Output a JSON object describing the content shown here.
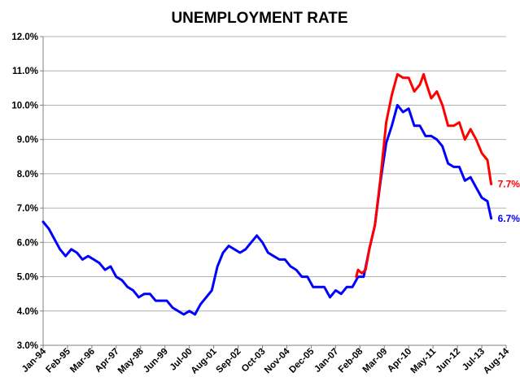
{
  "chart_data": {
    "type": "line",
    "title": "UNEMPLOYMENT RATE",
    "xlabel": "",
    "ylabel": "",
    "ylim": [
      3.0,
      12.0
    ],
    "y_ticks": [
      "3.0%",
      "4.0%",
      "5.0%",
      "6.0%",
      "7.0%",
      "8.0%",
      "9.0%",
      "10.0%",
      "11.0%",
      "12.0%"
    ],
    "x_ticks": [
      "Jan-94",
      "Feb-95",
      "Mar-96",
      "Apr-97",
      "May-98",
      "Jun-99",
      "Jul-00",
      "Aug-01",
      "Sep-02",
      "Oct-03",
      "Nov-04",
      "Dec-05",
      "Jan-07",
      "Feb-08",
      "Mar-09",
      "Apr-10",
      "May-11",
      "Jun-12",
      "Jul-13",
      "Aug-14"
    ],
    "grid": "horizontal",
    "legend": "none",
    "series": [
      {
        "color": "#0000ff",
        "end_label": "6.7%",
        "points": [
          [
            "Jan-94",
            6.6
          ],
          [
            "Apr-94",
            6.4
          ],
          [
            "Jul-94",
            6.1
          ],
          [
            "Oct-94",
            5.8
          ],
          [
            "Jan-95",
            5.6
          ],
          [
            "Apr-95",
            5.8
          ],
          [
            "Jul-95",
            5.7
          ],
          [
            "Oct-95",
            5.5
          ],
          [
            "Jan-96",
            5.6
          ],
          [
            "Apr-96",
            5.5
          ],
          [
            "Jul-96",
            5.4
          ],
          [
            "Oct-96",
            5.2
          ],
          [
            "Jan-97",
            5.3
          ],
          [
            "Apr-97",
            5.0
          ],
          [
            "Jul-97",
            4.9
          ],
          [
            "Oct-97",
            4.7
          ],
          [
            "Jan-98",
            4.6
          ],
          [
            "Apr-98",
            4.4
          ],
          [
            "Jul-98",
            4.5
          ],
          [
            "Oct-98",
            4.5
          ],
          [
            "Jan-99",
            4.3
          ],
          [
            "Apr-99",
            4.3
          ],
          [
            "Jul-99",
            4.3
          ],
          [
            "Oct-99",
            4.1
          ],
          [
            "Jan-00",
            4.0
          ],
          [
            "Apr-00",
            3.9
          ],
          [
            "Jul-00",
            4.0
          ],
          [
            "Oct-00",
            3.9
          ],
          [
            "Jan-01",
            4.2
          ],
          [
            "Apr-01",
            4.4
          ],
          [
            "Jul-01",
            4.6
          ],
          [
            "Oct-01",
            5.3
          ],
          [
            "Jan-02",
            5.7
          ],
          [
            "Apr-02",
            5.9
          ],
          [
            "Jul-02",
            5.8
          ],
          [
            "Oct-02",
            5.7
          ],
          [
            "Jan-03",
            5.8
          ],
          [
            "Apr-03",
            6.0
          ],
          [
            "Jul-03",
            6.2
          ],
          [
            "Oct-03",
            6.0
          ],
          [
            "Jan-04",
            5.7
          ],
          [
            "Apr-04",
            5.6
          ],
          [
            "Jul-04",
            5.5
          ],
          [
            "Oct-04",
            5.5
          ],
          [
            "Jan-05",
            5.3
          ],
          [
            "Apr-05",
            5.2
          ],
          [
            "Jul-05",
            5.0
          ],
          [
            "Oct-05",
            5.0
          ],
          [
            "Jan-06",
            4.7
          ],
          [
            "Apr-06",
            4.7
          ],
          [
            "Jul-06",
            4.7
          ],
          [
            "Oct-06",
            4.4
          ],
          [
            "Jan-07",
            4.6
          ],
          [
            "Apr-07",
            4.5
          ],
          [
            "Jul-07",
            4.7
          ],
          [
            "Oct-07",
            4.7
          ],
          [
            "Jan-08",
            5.0
          ],
          [
            "Apr-08",
            5.0
          ],
          [
            "Jul-08",
            5.8
          ],
          [
            "Oct-08",
            6.5
          ],
          [
            "Jan-09",
            7.8
          ],
          [
            "Apr-09",
            8.9
          ],
          [
            "Jul-09",
            9.4
          ],
          [
            "Oct-09",
            10.0
          ],
          [
            "Jan-10",
            9.8
          ],
          [
            "Apr-10",
            9.9
          ],
          [
            "Jul-10",
            9.4
          ],
          [
            "Oct-10",
            9.4
          ],
          [
            "Jan-11",
            9.1
          ],
          [
            "Apr-11",
            9.1
          ],
          [
            "Jul-11",
            9.0
          ],
          [
            "Oct-11",
            8.8
          ],
          [
            "Jan-12",
            8.3
          ],
          [
            "Apr-12",
            8.2
          ],
          [
            "Jul-12",
            8.2
          ],
          [
            "Oct-12",
            7.8
          ],
          [
            "Jan-13",
            7.9
          ],
          [
            "Apr-13",
            7.6
          ],
          [
            "Jul-13",
            7.3
          ],
          [
            "Oct-13",
            7.2
          ],
          [
            "Dec-13",
            6.7
          ]
        ]
      },
      {
        "color": "#ff0000",
        "end_label": "7.7%",
        "points": [
          [
            "Dec-07",
            5.0
          ],
          [
            "Jan-08",
            5.2
          ],
          [
            "Mar-08",
            5.1
          ],
          [
            "May-08",
            5.2
          ],
          [
            "Jul-08",
            5.8
          ],
          [
            "Oct-08",
            6.5
          ],
          [
            "Jan-09",
            7.9
          ],
          [
            "Apr-09",
            9.5
          ],
          [
            "Jul-09",
            10.3
          ],
          [
            "Oct-09",
            10.9
          ],
          [
            "Jan-10",
            10.8
          ],
          [
            "Apr-10",
            10.8
          ],
          [
            "Jul-10",
            10.4
          ],
          [
            "Oct-10",
            10.6
          ],
          [
            "Dec-10",
            10.9
          ],
          [
            "Jan-11",
            10.7
          ],
          [
            "Apr-11",
            10.2
          ],
          [
            "Jul-11",
            10.4
          ],
          [
            "Oct-11",
            10.0
          ],
          [
            "Jan-12",
            9.4
          ],
          [
            "Apr-12",
            9.4
          ],
          [
            "Jul-12",
            9.5
          ],
          [
            "Oct-12",
            9.0
          ],
          [
            "Jan-13",
            9.3
          ],
          [
            "Apr-13",
            9.0
          ],
          [
            "Jul-13",
            8.6
          ],
          [
            "Oct-13",
            8.4
          ],
          [
            "Dec-13",
            7.7
          ]
        ]
      }
    ]
  }
}
